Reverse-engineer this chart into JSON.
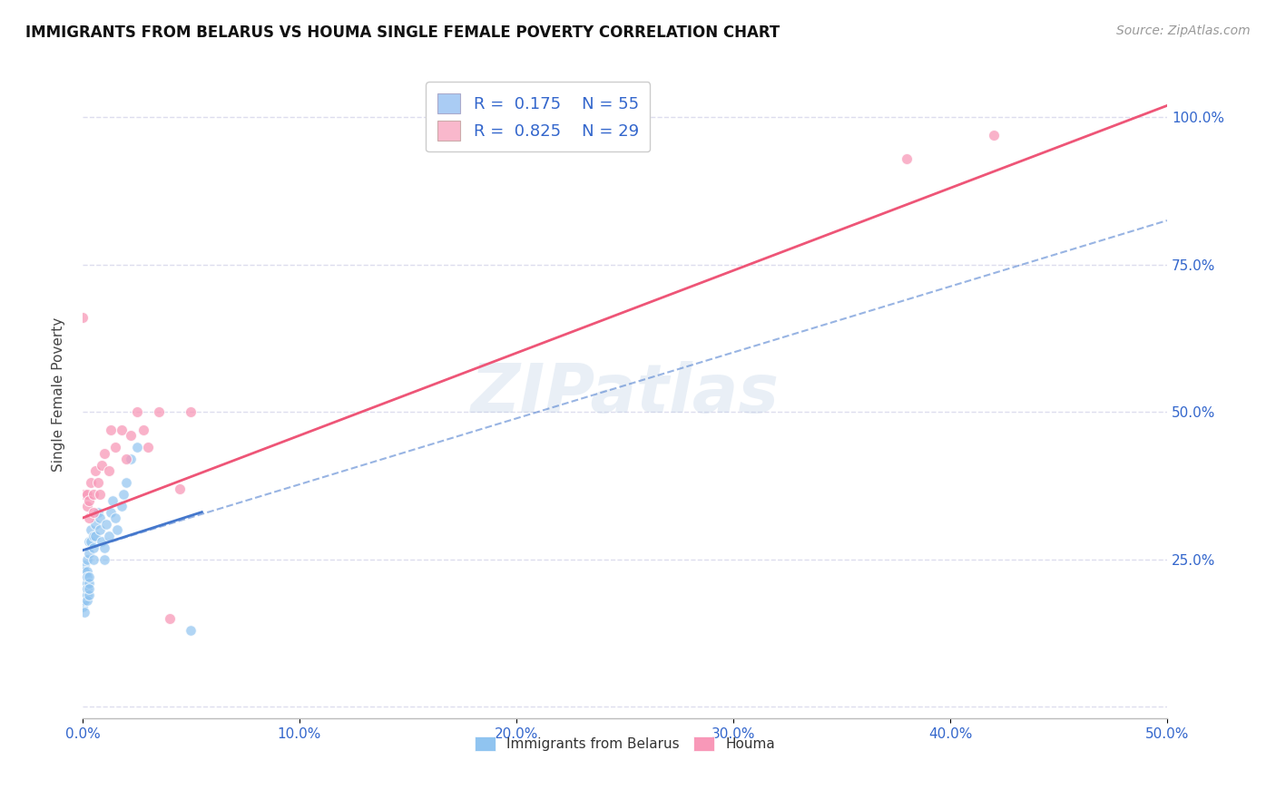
{
  "title": "IMMIGRANTS FROM BELARUS VS HOUMA SINGLE FEMALE POVERTY CORRELATION CHART",
  "source": "Source: ZipAtlas.com",
  "ylabel_label": "Single Female Poverty",
  "xlim": [
    0,
    0.5
  ],
  "ylim": [
    -0.02,
    1.08
  ],
  "watermark": "ZIPatlas",
  "scatter_blue_color": "#90c4f0",
  "scatter_pink_color": "#f898b8",
  "line_blue_color": "#4477cc",
  "line_pink_color": "#ee5577",
  "legend_blue_fill": "#aaccf4",
  "legend_pink_fill": "#f9b8cc",
  "legend_bottom": [
    "Immigrants from Belarus",
    "Houma"
  ],
  "blue_points_x": [
    0.0,
    0.0,
    0.0,
    0.0,
    0.0,
    0.0,
    0.0,
    0.001,
    0.001,
    0.001,
    0.001,
    0.001,
    0.001,
    0.001,
    0.001,
    0.001,
    0.001,
    0.002,
    0.002,
    0.002,
    0.002,
    0.002,
    0.002,
    0.002,
    0.003,
    0.003,
    0.003,
    0.003,
    0.003,
    0.003,
    0.004,
    0.004,
    0.005,
    0.005,
    0.005,
    0.006,
    0.006,
    0.007,
    0.008,
    0.008,
    0.009,
    0.01,
    0.01,
    0.011,
    0.012,
    0.013,
    0.014,
    0.015,
    0.016,
    0.018,
    0.019,
    0.02,
    0.022,
    0.025,
    0.05
  ],
  "blue_points_y": [
    0.18,
    0.2,
    0.22,
    0.2,
    0.19,
    0.21,
    0.17,
    0.2,
    0.22,
    0.2,
    0.18,
    0.16,
    0.24,
    0.22,
    0.21,
    0.19,
    0.23,
    0.21,
    0.19,
    0.23,
    0.25,
    0.2,
    0.22,
    0.18,
    0.21,
    0.19,
    0.28,
    0.22,
    0.2,
    0.26,
    0.3,
    0.28,
    0.27,
    0.25,
    0.29,
    0.31,
    0.29,
    0.33,
    0.32,
    0.3,
    0.28,
    0.27,
    0.25,
    0.31,
    0.29,
    0.33,
    0.35,
    0.32,
    0.3,
    0.34,
    0.36,
    0.38,
    0.42,
    0.44,
    0.13
  ],
  "pink_points_x": [
    0.0,
    0.001,
    0.002,
    0.002,
    0.003,
    0.003,
    0.004,
    0.005,
    0.005,
    0.006,
    0.007,
    0.008,
    0.009,
    0.01,
    0.012,
    0.013,
    0.015,
    0.018,
    0.02,
    0.022,
    0.025,
    0.028,
    0.03,
    0.035,
    0.04,
    0.045,
    0.05,
    0.38,
    0.42
  ],
  "pink_points_y": [
    0.66,
    0.36,
    0.34,
    0.36,
    0.32,
    0.35,
    0.38,
    0.33,
    0.36,
    0.4,
    0.38,
    0.36,
    0.41,
    0.43,
    0.4,
    0.47,
    0.44,
    0.47,
    0.42,
    0.46,
    0.5,
    0.47,
    0.44,
    0.5,
    0.15,
    0.37,
    0.5,
    0.93,
    0.97
  ],
  "blue_solid_line_x": [
    0.0,
    0.055
  ],
  "blue_solid_line_y": [
    0.265,
    0.33
  ],
  "blue_dash_line_x": [
    0.0,
    0.5
  ],
  "blue_dash_line_y": [
    0.265,
    0.825
  ],
  "pink_line_x": [
    0.0,
    0.5
  ],
  "pink_line_y": [
    0.32,
    1.02
  ],
  "grid_color": "#ddddee",
  "grid_style": "--",
  "background_color": "#ffffff",
  "right_ytick_vals": [
    0.0,
    0.25,
    0.5,
    0.75,
    1.0
  ],
  "right_ytick_labels": [
    "",
    "25.0%",
    "50.0%",
    "75.0%",
    "100.0%"
  ],
  "xtick_vals": [
    0.0,
    0.1,
    0.2,
    0.3,
    0.4,
    0.5
  ],
  "xtick_labels": [
    "0.0%",
    "10.0%",
    "20.0%",
    "30.0%",
    "40.0%",
    "50.0%"
  ]
}
